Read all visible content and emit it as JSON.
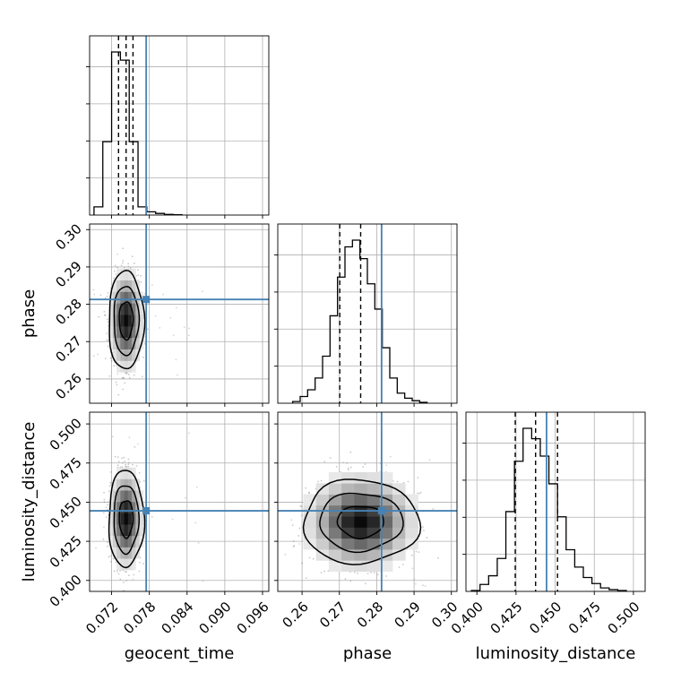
{
  "chart_data": {
    "type": "corner",
    "parameters": [
      "geocent_time",
      "phase",
      "luminosity_distance"
    ],
    "truths": [
      0.0775,
      0.2813,
      0.4445
    ],
    "truth_color": "#4682b4",
    "grid": true,
    "axes": {
      "geocent_time": {
        "label": "geocent_time",
        "range": [
          0.0685,
          0.097
        ],
        "ticks": [
          0.072,
          0.078,
          0.084,
          0.09,
          0.096
        ],
        "tick_labels": [
          "0.072",
          "0.078",
          "0.084",
          "0.090",
          "0.096"
        ]
      },
      "phase": {
        "label": "phase",
        "range": [
          0.2535,
          0.3015
        ],
        "ticks": [
          0.26,
          0.27,
          0.28,
          0.29,
          0.3
        ],
        "tick_labels": [
          "0.26",
          "0.27",
          "0.28",
          "0.29",
          "0.30"
        ]
      },
      "luminosity_distance": {
        "label": "luminosity_distance",
        "range": [
          0.393,
          0.5075
        ],
        "ticks": [
          0.4,
          0.425,
          0.45,
          0.475,
          0.5
        ],
        "tick_labels": [
          "0.400",
          "0.425",
          "0.450",
          "0.475",
          "0.500"
        ]
      }
    },
    "marginals": [
      {
        "parameter": "geocent_time",
        "bin_edges": [
          0.0692,
          0.0706,
          0.072,
          0.0734,
          0.0748,
          0.0762,
          0.0776,
          0.079,
          0.0804,
          0.0818,
          0.0832
        ],
        "counts": [
          0.05,
          0.45,
          1.0,
          0.95,
          0.45,
          0.05,
          0.02,
          0.01,
          0.004,
          0.002
        ],
        "quantiles": [
          0.0731,
          0.0743,
          0.0754
        ]
      },
      {
        "parameter": "phase",
        "bin_edges": [
          0.2575,
          0.2595,
          0.2615,
          0.2635,
          0.2655,
          0.2675,
          0.2695,
          0.2715,
          0.2735,
          0.2755,
          0.2775,
          0.2795,
          0.2815,
          0.2835,
          0.2855,
          0.2875,
          0.2895,
          0.2915,
          0.2935
        ],
        "counts": [
          0.01,
          0.04,
          0.08,
          0.15,
          0.28,
          0.52,
          0.75,
          0.93,
          0.97,
          0.86,
          0.71,
          0.56,
          0.33,
          0.15,
          0.06,
          0.03,
          0.015,
          0.005
        ],
        "quantiles": [
          0.2701,
          0.2757,
          0.2813
        ]
      },
      {
        "parameter": "luminosity_distance",
        "bin_edges": [
          0.3965,
          0.402,
          0.4075,
          0.413,
          0.4185,
          0.424,
          0.4295,
          0.435,
          0.4405,
          0.446,
          0.4515,
          0.457,
          0.4625,
          0.468,
          0.4735,
          0.479,
          0.4845,
          0.49,
          0.4955
        ],
        "counts": [
          0.005,
          0.04,
          0.09,
          0.19,
          0.46,
          0.75,
          0.94,
          0.88,
          0.78,
          0.62,
          0.43,
          0.24,
          0.14,
          0.08,
          0.045,
          0.02,
          0.01,
          0.005
        ],
        "quantiles": [
          0.4245,
          0.4375,
          0.4515
        ]
      }
    ],
    "joint": [
      {
        "x": "geocent_time",
        "y": "phase",
        "center": [
          0.0743,
          0.2757
        ],
        "sd": [
          0.0011,
          0.0056
        ],
        "contour_levels": [
          [
            1.0,
            0.9
          ],
          [
            1.8,
            1.65
          ],
          [
            2.55,
            2.35
          ]
        ]
      },
      {
        "x": "geocent_time",
        "y": "luminosity_distance",
        "center": [
          0.0743,
          0.4395
        ],
        "sd": [
          0.0011,
          0.0132
        ],
        "contour_levels": [
          [
            1.0,
            0.9
          ],
          [
            1.8,
            1.65
          ],
          [
            2.55,
            2.35
          ]
        ]
      },
      {
        "x": "phase",
        "y": "luminosity_distance",
        "center": [
          0.2757,
          0.4375
        ],
        "sd": [
          0.0062,
          0.0128
        ],
        "contour_levels": [
          [
            1.0,
            0.8
          ],
          [
            1.8,
            1.45
          ],
          [
            2.5,
            2.1
          ]
        ]
      }
    ]
  }
}
